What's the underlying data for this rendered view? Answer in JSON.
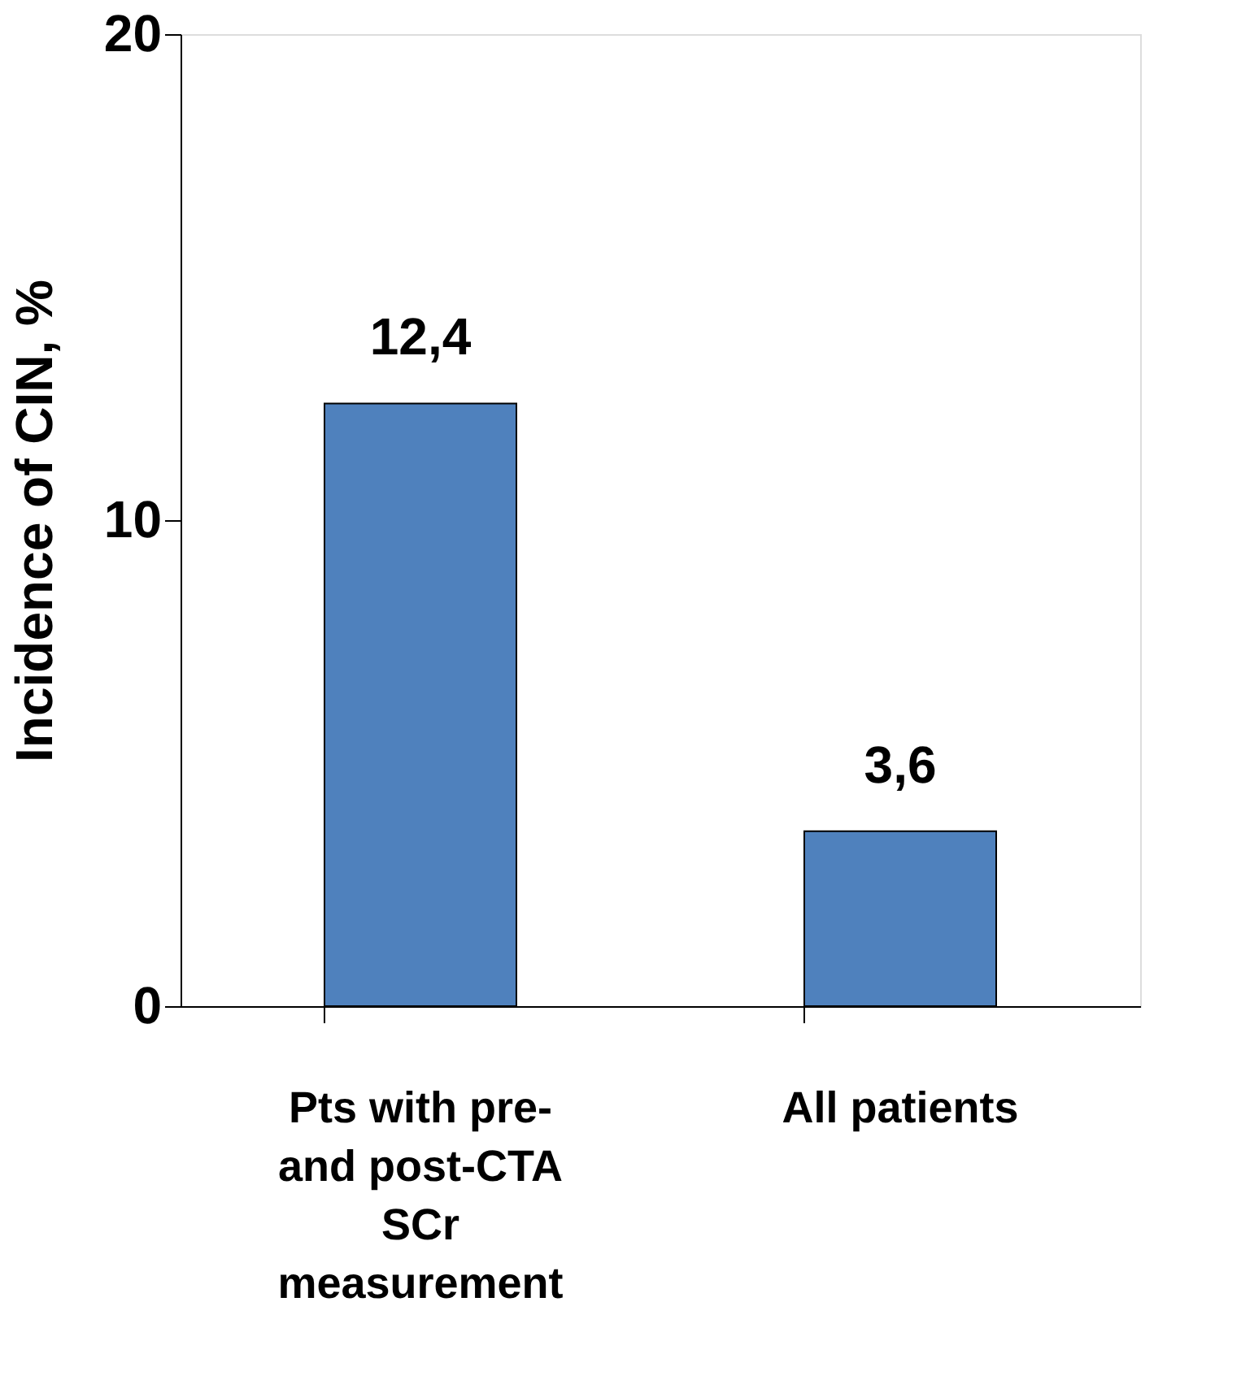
{
  "chart_data": {
    "type": "bar",
    "ylabel": "Incidence of CIN, %",
    "categories": [
      "Pts with pre- and post-CTA SCr measurement",
      "All patients"
    ],
    "values": [
      12.4,
      3.6
    ],
    "color": "#4f81bd",
    "value_labels": [
      "12,4",
      "3,6"
    ],
    "ylim": [
      0,
      20
    ],
    "yticks": [
      0,
      10,
      20
    ],
    "grid": false
  }
}
